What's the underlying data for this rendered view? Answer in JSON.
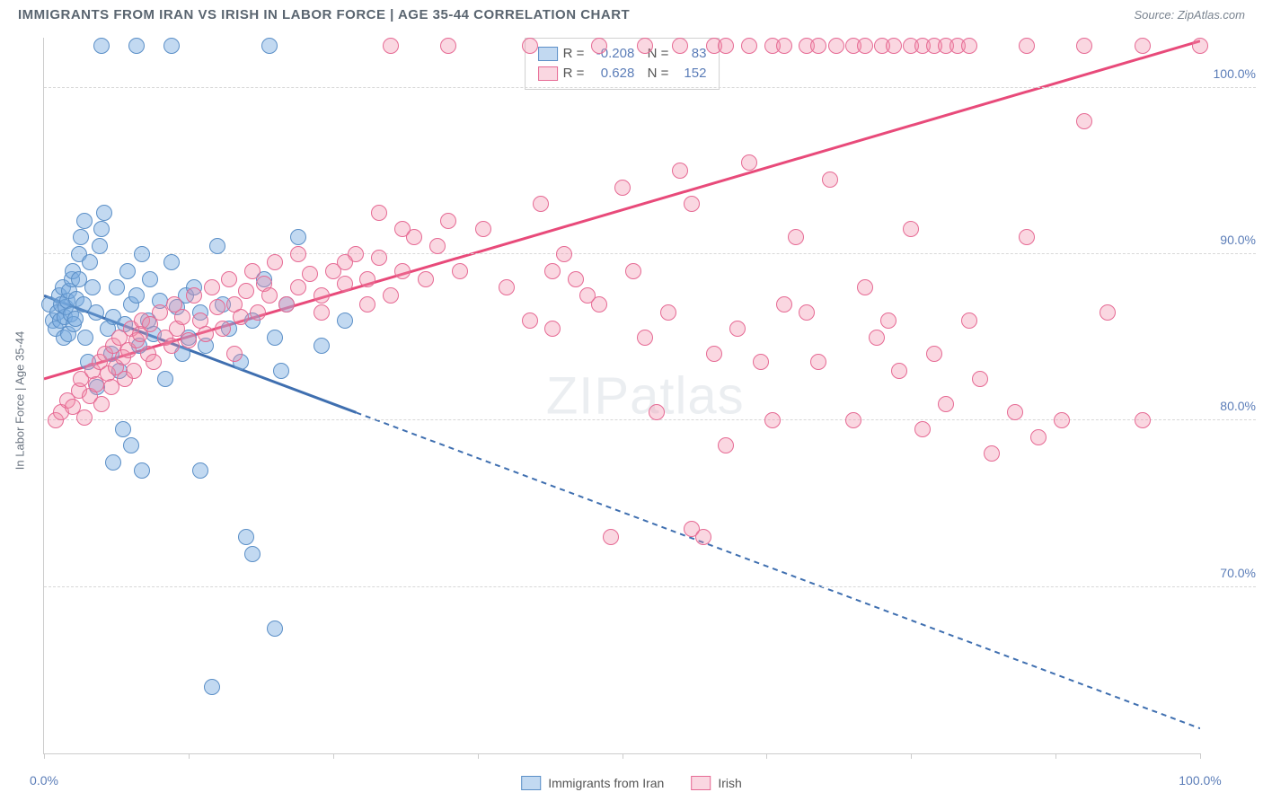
{
  "header": {
    "title": "IMMIGRANTS FROM IRAN VS IRISH IN LABOR FORCE | AGE 35-44 CORRELATION CHART",
    "source_prefix": "Source: ",
    "source": "ZipAtlas.com"
  },
  "watermark": "ZIPatlas",
  "y_axis_label": "In Labor Force | Age 35-44",
  "chart": {
    "type": "scatter",
    "xlim": [
      0,
      100
    ],
    "ylim": [
      60,
      103
    ],
    "x_ticks": [
      0,
      12.5,
      25,
      37.5,
      50,
      62.5,
      75,
      87.5,
      100
    ],
    "x_tick_labels": {
      "0": "0.0%",
      "100": "100.0%"
    },
    "y_gridlines": [
      70,
      80,
      90,
      100
    ],
    "y_tick_labels": {
      "70": "70.0%",
      "80": "80.0%",
      "90": "90.0%",
      "100": "100.0%"
    },
    "background_color": "#ffffff",
    "grid_color": "#d8d8d8",
    "series": [
      {
        "name": "Immigrants from Iran",
        "fill": "rgba(120,170,225,0.45)",
        "stroke": "#5b8fc7",
        "line_color": "#3f6fb0",
        "R": "-0.208",
        "N": "83",
        "trend": {
          "x1": 0,
          "y1": 87.5,
          "x2": 100,
          "y2": 61.5,
          "solid_until_x": 27
        },
        "points": [
          [
            0.5,
            87
          ],
          [
            0.8,
            86
          ],
          [
            1.0,
            85.5
          ],
          [
            1.2,
            86.5
          ],
          [
            1.3,
            87.5
          ],
          [
            1.4,
            86
          ],
          [
            1.5,
            87
          ],
          [
            1.6,
            88
          ],
          [
            1.7,
            85
          ],
          [
            1.8,
            86.2
          ],
          [
            1.9,
            86.8
          ],
          [
            2.0,
            87.2
          ],
          [
            2.1,
            85.2
          ],
          [
            2.2,
            87.8
          ],
          [
            2.3,
            86.4
          ],
          [
            2.4,
            88.5
          ],
          [
            2.5,
            89
          ],
          [
            2.6,
            85.8
          ],
          [
            2.7,
            86.1
          ],
          [
            2.8,
            87.3
          ],
          [
            3.0,
            90
          ],
          [
            3.2,
            91
          ],
          [
            3.5,
            92
          ],
          [
            3.0,
            88.5
          ],
          [
            3.4,
            87
          ],
          [
            3.6,
            85
          ],
          [
            4.0,
            89.5
          ],
          [
            4.2,
            88
          ],
          [
            4.5,
            86.5
          ],
          [
            4.8,
            90.5
          ],
          [
            5.0,
            91.5
          ],
          [
            5.2,
            92.5
          ],
          [
            5.5,
            85.5
          ],
          [
            5.8,
            84
          ],
          [
            6.0,
            86.2
          ],
          [
            6.3,
            88
          ],
          [
            6.5,
            83
          ],
          [
            7.0,
            85.8
          ],
          [
            7.2,
            89
          ],
          [
            7.5,
            87
          ],
          [
            8.0,
            87.5
          ],
          [
            8.2,
            84.5
          ],
          [
            8.5,
            90
          ],
          [
            9.0,
            86
          ],
          [
            9.2,
            88.5
          ],
          [
            9.5,
            85.2
          ],
          [
            10.0,
            87.2
          ],
          [
            10.5,
            82.5
          ],
          [
            11.0,
            89.5
          ],
          [
            11.5,
            86.8
          ],
          [
            12.0,
            84
          ],
          [
            12.3,
            87.5
          ],
          [
            12.5,
            85
          ],
          [
            13.0,
            88
          ],
          [
            13.5,
            77
          ],
          [
            13.5,
            86.5
          ],
          [
            14.0,
            84.5
          ],
          [
            15.0,
            90.5
          ],
          [
            15.5,
            87
          ],
          [
            16.0,
            85.5
          ],
          [
            17.0,
            83.5
          ],
          [
            17.5,
            73
          ],
          [
            18.0,
            72
          ],
          [
            18.0,
            86
          ],
          [
            19.0,
            88.5
          ],
          [
            20.0,
            67.5
          ],
          [
            20.0,
            85
          ],
          [
            20.5,
            83
          ],
          [
            21.0,
            87
          ],
          [
            22.0,
            91
          ],
          [
            24.0,
            84.5
          ],
          [
            26.0,
            86
          ],
          [
            5.0,
            102.5
          ],
          [
            8.0,
            102.5
          ],
          [
            11.0,
            102.5
          ],
          [
            19.5,
            102.5
          ],
          [
            6.0,
            77.5
          ],
          [
            7.5,
            78.5
          ],
          [
            8.5,
            77
          ],
          [
            14.5,
            64
          ],
          [
            3.8,
            83.5
          ],
          [
            4.6,
            82
          ],
          [
            6.8,
            79.5
          ]
        ]
      },
      {
        "name": "Irish",
        "fill": "rgba(240,140,170,0.35)",
        "stroke": "#e66a94",
        "line_color": "#e84a7a",
        "R": "0.628",
        "N": "152",
        "trend": {
          "x1": 0,
          "y1": 82.5,
          "x2": 100,
          "y2": 102.8,
          "solid_until_x": 100
        },
        "points": [
          [
            1.0,
            80
          ],
          [
            1.5,
            80.5
          ],
          [
            2.0,
            81.2
          ],
          [
            2.5,
            80.8
          ],
          [
            3.0,
            81.8
          ],
          [
            3.2,
            82.5
          ],
          [
            3.5,
            80.2
          ],
          [
            4.0,
            81.5
          ],
          [
            4.2,
            83
          ],
          [
            4.5,
            82.2
          ],
          [
            4.8,
            83.5
          ],
          [
            5.0,
            81
          ],
          [
            5.3,
            84
          ],
          [
            5.5,
            82.8
          ],
          [
            5.8,
            82
          ],
          [
            6.0,
            84.5
          ],
          [
            6.2,
            83.2
          ],
          [
            6.5,
            85
          ],
          [
            6.8,
            83.8
          ],
          [
            7.0,
            82.5
          ],
          [
            7.3,
            84.2
          ],
          [
            7.5,
            85.5
          ],
          [
            7.8,
            83
          ],
          [
            8.0,
            84.8
          ],
          [
            8.3,
            85.2
          ],
          [
            8.5,
            86
          ],
          [
            9.0,
            84
          ],
          [
            9.2,
            85.8
          ],
          [
            9.5,
            83.5
          ],
          [
            10.0,
            86.5
          ],
          [
            10.5,
            85
          ],
          [
            11.0,
            84.5
          ],
          [
            11.3,
            87
          ],
          [
            11.5,
            85.5
          ],
          [
            12.0,
            86.2
          ],
          [
            12.5,
            84.8
          ],
          [
            13.0,
            87.5
          ],
          [
            13.5,
            86
          ],
          [
            14.0,
            85.2
          ],
          [
            14.5,
            88
          ],
          [
            15.0,
            86.8
          ],
          [
            15.5,
            85.5
          ],
          [
            16.0,
            88.5
          ],
          [
            16.5,
            87
          ],
          [
            17.0,
            86.2
          ],
          [
            17.5,
            87.8
          ],
          [
            18.0,
            89
          ],
          [
            18.5,
            86.5
          ],
          [
            19.0,
            88.2
          ],
          [
            19.5,
            87.5
          ],
          [
            20.0,
            89.5
          ],
          [
            21.0,
            87
          ],
          [
            22.0,
            88
          ],
          [
            23.0,
            88.8
          ],
          [
            24.0,
            87.5
          ],
          [
            25.0,
            89
          ],
          [
            26.0,
            88.2
          ],
          [
            27.0,
            90
          ],
          [
            28.0,
            88.5
          ],
          [
            29.0,
            89.8
          ],
          [
            30.0,
            87.5
          ],
          [
            31.0,
            89
          ],
          [
            32.0,
            91
          ],
          [
            33.0,
            88.5
          ],
          [
            34.0,
            90.5
          ],
          [
            35.0,
            92
          ],
          [
            36.0,
            89
          ],
          [
            38.0,
            91.5
          ],
          [
            40.0,
            88
          ],
          [
            42.0,
            86
          ],
          [
            44.0,
            85.5
          ],
          [
            45.0,
            90
          ],
          [
            46.0,
            88.5
          ],
          [
            48.0,
            87
          ],
          [
            50.0,
            94
          ],
          [
            52.0,
            85
          ],
          [
            54.0,
            86.5
          ],
          [
            55.0,
            95
          ],
          [
            56.0,
            93
          ],
          [
            58.0,
            84
          ],
          [
            60.0,
            85.5
          ],
          [
            61.0,
            95.5
          ],
          [
            62.0,
            83.5
          ],
          [
            64.0,
            87
          ],
          [
            65.0,
            91
          ],
          [
            66.0,
            86.5
          ],
          [
            68.0,
            94.5
          ],
          [
            70.0,
            80
          ],
          [
            72.0,
            85
          ],
          [
            74.0,
            83
          ],
          [
            75.0,
            91.5
          ],
          [
            76.0,
            79.5
          ],
          [
            78.0,
            81
          ],
          [
            80.0,
            86
          ],
          [
            82.0,
            78
          ],
          [
            84.0,
            80.5
          ],
          [
            85.0,
            91
          ],
          [
            88.0,
            80
          ],
          [
            90.0,
            98
          ],
          [
            92.0,
            86.5
          ],
          [
            30.0,
            102.5
          ],
          [
            35.0,
            102.5
          ],
          [
            42.0,
            102.5
          ],
          [
            48.0,
            102.5
          ],
          [
            52.0,
            102.5
          ],
          [
            55.0,
            102.5
          ],
          [
            58.0,
            102.5
          ],
          [
            59.0,
            102.5
          ],
          [
            61.0,
            102.5
          ],
          [
            63.0,
            102.5
          ],
          [
            64.0,
            102.5
          ],
          [
            66.0,
            102.5
          ],
          [
            67.0,
            102.5
          ],
          [
            68.5,
            102.5
          ],
          [
            70.0,
            102.5
          ],
          [
            71.0,
            102.5
          ],
          [
            72.5,
            102.5
          ],
          [
            73.5,
            102.5
          ],
          [
            75.0,
            102.5
          ],
          [
            76.0,
            102.5
          ],
          [
            77.0,
            102.5
          ],
          [
            78.0,
            102.5
          ],
          [
            79.0,
            102.5
          ],
          [
            80.0,
            102.5
          ],
          [
            85.0,
            102.5
          ],
          [
            90.0,
            102.5
          ],
          [
            95.0,
            102.5
          ],
          [
            100.0,
            102.5
          ],
          [
            56.0,
            73.5
          ],
          [
            57.0,
            73
          ],
          [
            29.0,
            92.5
          ],
          [
            31.0,
            91.5
          ],
          [
            43.0,
            93
          ],
          [
            47.0,
            87.5
          ],
          [
            51.0,
            89
          ],
          [
            53.0,
            80.5
          ],
          [
            59.0,
            78.5
          ],
          [
            63.0,
            80
          ],
          [
            67.0,
            83.5
          ],
          [
            71.0,
            88
          ],
          [
            73.0,
            86
          ],
          [
            77.0,
            84
          ],
          [
            81.0,
            82.5
          ],
          [
            86.0,
            79
          ],
          [
            28.0,
            87
          ],
          [
            26.0,
            89.5
          ],
          [
            24.0,
            86.5
          ],
          [
            22.0,
            90
          ],
          [
            49.0,
            73
          ],
          [
            44.0,
            89
          ],
          [
            95.0,
            80
          ],
          [
            16.5,
            84
          ]
        ]
      }
    ]
  },
  "legend_bottom": [
    {
      "swatch_fill": "rgba(120,170,225,0.45)",
      "swatch_stroke": "#5b8fc7",
      "label": "Immigrants from Iran"
    },
    {
      "swatch_fill": "rgba(240,140,170,0.35)",
      "swatch_stroke": "#e66a94",
      "label": "Irish"
    }
  ]
}
